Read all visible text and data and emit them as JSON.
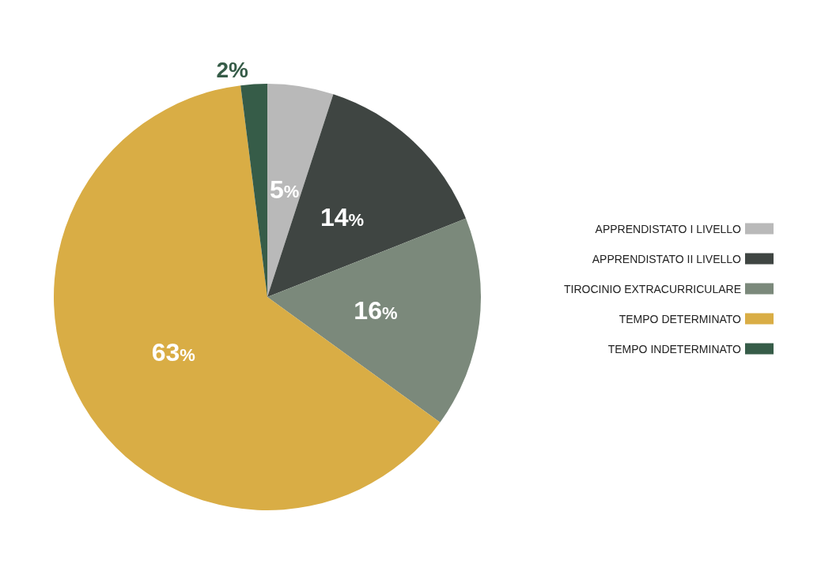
{
  "chart_data": {
    "type": "pie",
    "categories": [
      "APPRENDISTATO I LIVELLO",
      "APPRENDISTATO II LIVELLO",
      "TIROCINIO EXTRACURRICULARE",
      "TEMPO DETERMINATO",
      "TEMPO INDETERMINATO"
    ],
    "values": [
      5,
      14,
      16,
      63,
      2
    ],
    "value_labels": [
      "5%",
      "14%",
      "16%",
      "63%",
      "2%"
    ],
    "colors": [
      "#b9b9b9",
      "#3f4542",
      "#7b897b",
      "#d9ad45",
      "#365c48"
    ],
    "legend": "right"
  }
}
